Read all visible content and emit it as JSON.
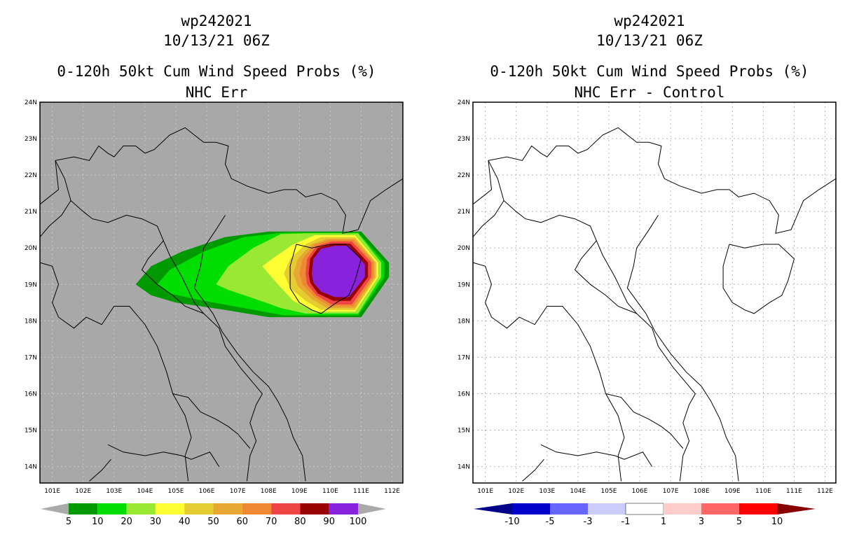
{
  "panels": [
    {
      "id": "left",
      "storm_id": "wp242021",
      "datetime": "10/13/21 06Z",
      "title": "0-120h 50kt Cum Wind Speed Probs (%)",
      "subtitle": "NHC Err",
      "background": "#a8a8a8",
      "colorbar": {
        "labels": [
          "5",
          "10",
          "20",
          "30",
          "40",
          "50",
          "60",
          "70",
          "80",
          "90",
          "100"
        ],
        "colors": [
          "#009900",
          "#00dd00",
          "#99e833",
          "#ffff33",
          "#e6cc33",
          "#e6a833",
          "#ee8833",
          "#ee4444",
          "#990000",
          "#8822dd"
        ],
        "end_arrows": "#aaaaaa"
      }
    },
    {
      "id": "right",
      "storm_id": "wp242021",
      "datetime": "10/13/21 06Z",
      "title": "0-120h 50kt Cum Wind Speed Probs (%)",
      "subtitle": "NHC Err - Control",
      "background": "#ffffff",
      "colorbar": {
        "labels": [
          "-10",
          "-5",
          "-3",
          "-1",
          "1",
          "3",
          "5",
          "10"
        ],
        "colors": [
          "#0000cc",
          "#6666ff",
          "#ccccff",
          "#ffffff",
          "#ffcccc",
          "#ff6666",
          "#ff0000"
        ],
        "end_left": "#000088",
        "end_right": "#880000"
      }
    }
  ],
  "axes": {
    "lat_labels": [
      "24N",
      "23N",
      "22N",
      "21N",
      "20N",
      "19N",
      "18N",
      "17N",
      "16N",
      "15N",
      "14N"
    ],
    "lon_labels": [
      "101E",
      "102E",
      "103E",
      "104E",
      "105E",
      "106E",
      "107E",
      "108E",
      "109E",
      "110E",
      "111E",
      "112E"
    ]
  },
  "probability_field": {
    "units": "%",
    "levels": [
      5,
      10,
      20,
      30,
      40,
      50,
      60,
      70,
      80,
      90
    ],
    "center": {
      "lon": 110.2,
      "lat": 19.4
    }
  }
}
